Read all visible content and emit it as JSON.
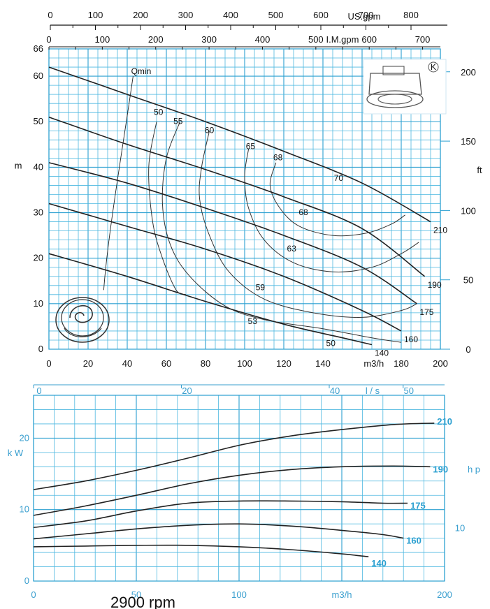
{
  "chart_data": [
    {
      "type": "line",
      "xlabel": "m3/h",
      "ylabel": "m",
      "ylabel_right": "ft",
      "xlim": [
        0,
        200
      ],
      "ylim": [
        0,
        66
      ],
      "y_right_lim": [
        0,
        216.5
      ],
      "x_ticks": [
        "0",
        "20",
        "40",
        "60",
        "80",
        "100",
        "120",
        "140",
        "180",
        "200"
      ],
      "y_ticks": [
        "0",
        "10",
        "20",
        "30",
        "40",
        "50",
        "60",
        "66"
      ],
      "y_right_ticks": [
        "0",
        "50",
        "100",
        "150",
        "200"
      ],
      "top_axis_usgpm": {
        "label": "US.gpm",
        "ticks": [
          "0",
          "100",
          "200",
          "300",
          "400",
          "500",
          "600",
          "700",
          "800"
        ],
        "max": 880.6
      },
      "top_axis_impgpm": {
        "label": "I.M.gpm",
        "ticks": [
          "0",
          "100",
          "200",
          "300",
          "400",
          "500",
          "600",
          "700"
        ],
        "max": 733.3
      },
      "annotation_qmin": "Qmin",
      "series": [
        {
          "name": "210",
          "x": [
            0,
            40,
            80,
            120,
            160,
            195
          ],
          "y": [
            62,
            56,
            50,
            43.5,
            36.5,
            28
          ]
        },
        {
          "name": "190",
          "x": [
            0,
            40,
            80,
            120,
            160,
            192
          ],
          "y": [
            51,
            45,
            39.5,
            33.5,
            26.5,
            16
          ]
        },
        {
          "name": "175",
          "x": [
            0,
            40,
            80,
            120,
            160,
            188
          ],
          "y": [
            41,
            36.5,
            31,
            25,
            18,
            10
          ]
        },
        {
          "name": "160",
          "x": [
            0,
            40,
            80,
            120,
            160,
            180
          ],
          "y": [
            32,
            27,
            22,
            16,
            8.5,
            4
          ]
        },
        {
          "name": "140",
          "x": [
            0,
            40,
            80,
            120,
            150,
            165
          ],
          "y": [
            21,
            16,
            10.5,
            5.5,
            2.5,
            1
          ]
        }
      ],
      "efficiency_contours": [
        {
          "name": "50",
          "x": [
            55,
            51,
            53,
            58,
            65,
            70
          ],
          "y": [
            50,
            40,
            28,
            20,
            13,
            12
          ],
          "label_x": 56,
          "label_y": 51.5
        },
        {
          "name": "55",
          "x": [
            67,
            60,
            58,
            62,
            72,
            90,
            110,
            140,
            165,
            180
          ],
          "y": [
            50,
            42,
            32,
            23,
            16,
            9.5,
            6.5,
            4.5,
            2.5,
            1.5
          ],
          "label_x": 66,
          "label_y": 49.5
        },
        {
          "name": "60",
          "x": [
            82,
            78,
            77,
            82,
            92,
            110,
            135,
            160,
            180,
            188
          ],
          "y": [
            48,
            40,
            33,
            25,
            17,
            11,
            8,
            7,
            8.5,
            10
          ],
          "label_x": 82,
          "label_y": 47.5
        },
        {
          "name": "65",
          "x": [
            102,
            100,
            102,
            110,
            125,
            145,
            165,
            180,
            189
          ],
          "y": [
            44,
            38,
            31,
            24,
            19,
            17,
            18,
            21,
            23.5
          ],
          "label_x": 103,
          "label_y": 44
        },
        {
          "name": "68",
          "x": [
            116,
            113,
            118,
            128,
            145,
            162,
            175,
            182
          ],
          "y": [
            41,
            36,
            31,
            27,
            25,
            25.5,
            27.5,
            29.5
          ],
          "label_x": 117,
          "label_y": 41.5
        }
      ],
      "efficiency_labels": [
        {
          "text": "70",
          "x": 148,
          "y": 37
        },
        {
          "text": "68",
          "x": 130,
          "y": 29.5
        },
        {
          "text": "63",
          "x": 124,
          "y": 21.5
        },
        {
          "text": "59",
          "x": 108,
          "y": 13
        },
        {
          "text": "53",
          "x": 104,
          "y": 5.5
        },
        {
          "text": "50",
          "x": 144,
          "y": 0.7
        }
      ]
    },
    {
      "type": "line",
      "xlabel": "m3/h",
      "ylabel": "k W",
      "ylabel_right": "h p",
      "xlim": [
        0,
        200
      ],
      "ylim": [
        0,
        26
      ],
      "x_ticks": [
        "0",
        "50",
        "100",
        "200"
      ],
      "y_ticks": [
        "0",
        "10",
        "20"
      ],
      "y_right_ticks": [
        "10"
      ],
      "top_axis_ls": {
        "label": "l / s",
        "ticks": [
          "0",
          "20",
          "40",
          "50"
        ],
        "max": 55.6
      },
      "series": [
        {
          "name": "210",
          "x": [
            0,
            25,
            50,
            75,
            100,
            125,
            150,
            175,
            195
          ],
          "y": [
            12.8,
            14.0,
            15.5,
            17.2,
            19.0,
            20.3,
            21.2,
            21.9,
            22.1
          ]
        },
        {
          "name": "190",
          "x": [
            0,
            25,
            50,
            75,
            100,
            125,
            150,
            175,
            193
          ],
          "y": [
            9.2,
            10.5,
            12.0,
            13.6,
            14.8,
            15.6,
            16.0,
            16.1,
            16.0
          ]
        },
        {
          "name": "175",
          "x": [
            0,
            25,
            50,
            75,
            100,
            125,
            150,
            170,
            182
          ],
          "y": [
            7.5,
            8.4,
            9.8,
            10.9,
            11.2,
            11.2,
            11.1,
            10.9,
            10.9
          ]
        },
        {
          "name": "160",
          "x": [
            0,
            25,
            50,
            75,
            100,
            125,
            150,
            170,
            180
          ],
          "y": [
            5.9,
            6.6,
            7.3,
            7.8,
            8.0,
            7.7,
            7.1,
            6.5,
            6.0
          ]
        },
        {
          "name": "140",
          "x": [
            0,
            25,
            50,
            75,
            100,
            125,
            150,
            163
          ],
          "y": [
            4.8,
            4.9,
            5.0,
            5.0,
            4.8,
            4.4,
            3.8,
            3.4
          ]
        }
      ]
    }
  ],
  "bottom_caption": "2900 rpm"
}
